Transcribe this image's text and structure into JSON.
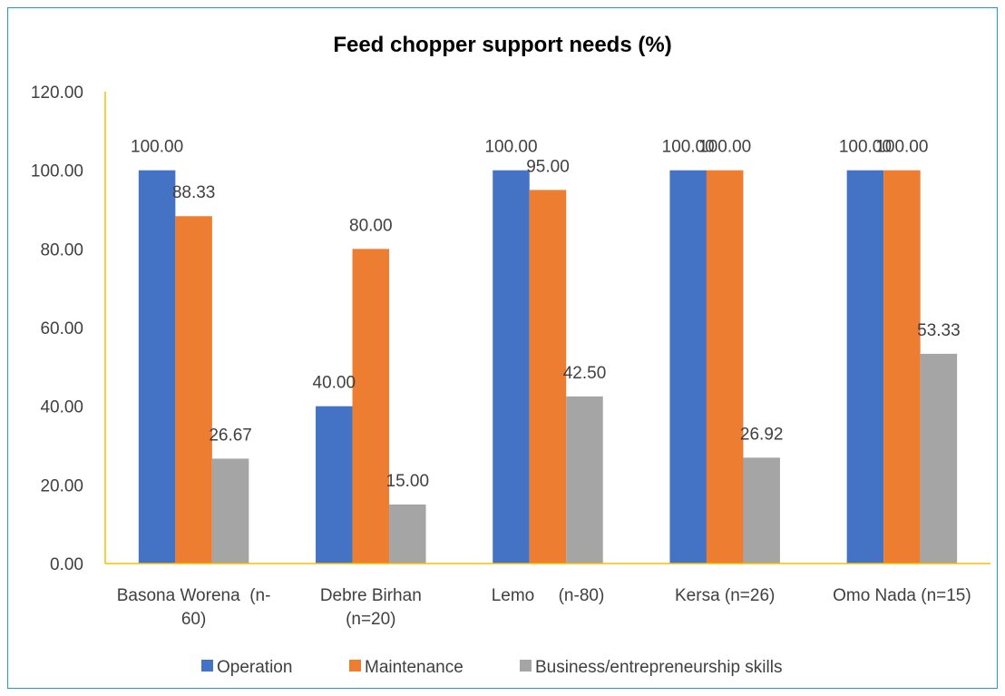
{
  "chart_data": {
    "type": "bar",
    "title": "Feed chopper support needs (%)",
    "xlabel": "",
    "ylabel": "",
    "ylim": [
      0,
      120
    ],
    "yticks": [
      "0.00",
      "20.00",
      "40.00",
      "60.00",
      "80.00",
      "100.00",
      "120.00"
    ],
    "categories": [
      [
        "Basona Worena  (n-",
        "60)"
      ],
      [
        "Debre Birhan",
        "(n=20)"
      ],
      [
        "Lemo     (n-80)"
      ],
      [
        "Kersa (n=26)"
      ],
      [
        "Omo Nada (n=15)"
      ]
    ],
    "series": [
      {
        "name": "Operation",
        "color": "#4472c4",
        "values": [
          100.0,
          40.0,
          100.0,
          100.0,
          100.0
        ],
        "labels": [
          "100.00",
          "40.00",
          "100.00",
          "100.00",
          "100.00"
        ]
      },
      {
        "name": "Maintenance",
        "color": "#ed7d31",
        "values": [
          88.33,
          80.0,
          95.0,
          100.0,
          100.0
        ],
        "labels": [
          "88.33",
          "80.00",
          "95.00",
          "100.00",
          "100.00"
        ]
      },
      {
        "name": "Business/entrepreneurship skills",
        "color": "#a5a5a5",
        "values": [
          26.67,
          15.0,
          42.5,
          26.92,
          53.33
        ],
        "labels": [
          "26.67",
          "15.00",
          "42.50",
          "26.92",
          "53.33"
        ]
      }
    ],
    "grid": false,
    "legend": "bottom",
    "axis_color": "#f2c200"
  }
}
